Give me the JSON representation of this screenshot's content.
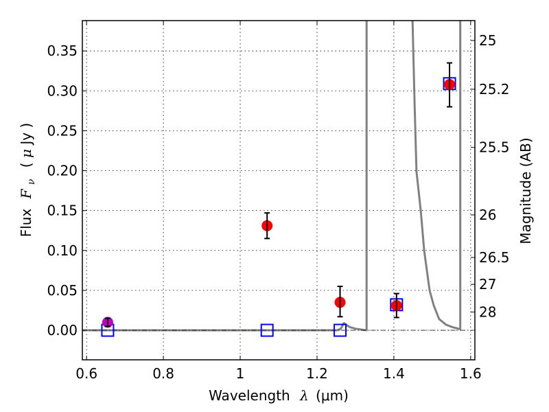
{
  "chart_data": {
    "type": "scatter",
    "title": "",
    "xlabel": "Wavelength  λ (μm)",
    "ylabel": "Flux  F_ν  ( μJy )",
    "ylabel_parts": {
      "prefix": "Flux",
      "symbol": "F",
      "subscript": "ν",
      "unit_open": "( ",
      "unit_mu": "μ",
      "unit_rest": "Jy )"
    },
    "xlabel_parts": {
      "prefix": "Wavelength",
      "symbol": "λ",
      "unit": "(μm)"
    },
    "y2label": "Magnitude (AB)",
    "xlim": [
      0.589,
      1.611
    ],
    "ylim": [
      -0.037,
      0.388
    ],
    "grid": true,
    "x_ticks": [
      {
        "value": 0.6,
        "label": "0.6"
      },
      {
        "value": 0.8,
        "label": "0.8"
      },
      {
        "value": 1.0,
        "label": "1"
      },
      {
        "value": 1.2,
        "label": "1.2"
      },
      {
        "value": 1.4,
        "label": "1.4"
      },
      {
        "value": 1.6,
        "label": "1.6"
      }
    ],
    "y_ticks": [
      {
        "value": 0.0,
        "label": "0.00"
      },
      {
        "value": 0.05,
        "label": "0.05"
      },
      {
        "value": 0.1,
        "label": "0.10"
      },
      {
        "value": 0.15,
        "label": "0.15"
      },
      {
        "value": 0.2,
        "label": "0.20"
      },
      {
        "value": 0.25,
        "label": "0.25"
      },
      {
        "value": 0.3,
        "label": "0.30"
      },
      {
        "value": 0.35,
        "label": "0.35"
      }
    ],
    "y2_ticks": [
      {
        "mag": 25,
        "label": "25"
      },
      {
        "mag": 25.2,
        "label": "25.2"
      },
      {
        "mag": 25.5,
        "label": "25.5"
      },
      {
        "mag": 26,
        "label": "26"
      },
      {
        "mag": 26.5,
        "label": "26.5"
      },
      {
        "mag": 27,
        "label": "27"
      },
      {
        "mag": 28,
        "label": "28"
      }
    ],
    "ab_zeropoint_ujy": 23.9,
    "series": [
      {
        "name": "model-photometry",
        "marker": "open-square",
        "color": "#0000ff",
        "points": [
          {
            "x": 0.655,
            "y": 0.0
          },
          {
            "x": 1.07,
            "y": 0.0
          },
          {
            "x": 1.26,
            "y": 0.0
          },
          {
            "x": 1.407,
            "y": 0.032
          },
          {
            "x": 1.545,
            "y": 0.309
          }
        ]
      },
      {
        "name": "observed-flux",
        "marker": "filled-circle",
        "color": "#ff0000",
        "points": [
          {
            "x": 1.07,
            "y": 0.131,
            "err_lo": 0.115,
            "err_hi": 0.147
          },
          {
            "x": 1.26,
            "y": 0.035,
            "err_lo": 0.017,
            "err_hi": 0.055
          },
          {
            "x": 1.407,
            "y": 0.031,
            "err_lo": 0.016,
            "err_hi": 0.046
          },
          {
            "x": 1.545,
            "y": 0.308,
            "err_lo": 0.28,
            "err_hi": 0.335
          }
        ]
      },
      {
        "name": "optical-flux",
        "marker": "filled-circle",
        "color": "#bf00bf",
        "points": [
          {
            "x": 0.655,
            "y": 0.01,
            "err_lo": 0.005,
            "err_hi": 0.015
          }
        ]
      },
      {
        "name": "sed-model-segment-1",
        "type": "line",
        "color": "#808080",
        "points": [
          {
            "x": 0.589,
            "y": 0.0
          },
          {
            "x": 1.252,
            "y": 0.0
          },
          {
            "x": 1.262,
            "y": 0.002
          },
          {
            "x": 1.27,
            "y": 0.009
          },
          {
            "x": 1.276,
            "y": 0.007
          },
          {
            "x": 1.285,
            "y": 0.004
          },
          {
            "x": 1.3,
            "y": 0.002
          },
          {
            "x": 1.32,
            "y": 0.0005
          },
          {
            "x": 1.329,
            "y": 0.0
          },
          {
            "x": 1.329,
            "y": 0.4
          }
        ]
      },
      {
        "name": "sed-model-segment-2",
        "type": "line",
        "color": "#808080",
        "points": [
          {
            "x": 1.448,
            "y": 0.4
          },
          {
            "x": 1.454,
            "y": 0.285
          },
          {
            "x": 1.459,
            "y": 0.199
          },
          {
            "x": 1.47,
            "y": 0.15
          },
          {
            "x": 1.479,
            "y": 0.1
          },
          {
            "x": 1.493,
            "y": 0.05
          },
          {
            "x": 1.504,
            "y": 0.031
          },
          {
            "x": 1.518,
            "y": 0.014
          },
          {
            "x": 1.536,
            "y": 0.007
          },
          {
            "x": 1.552,
            "y": 0.004
          },
          {
            "x": 1.568,
            "y": 0.002
          },
          {
            "x": 1.573,
            "y": 0.0015
          },
          {
            "x": 1.573,
            "y": 0.4
          }
        ]
      }
    ],
    "reference_lines": [
      {
        "name": "zero-flux-line",
        "y": 0.0,
        "style": "dashdot",
        "color": "#000000"
      }
    ]
  }
}
